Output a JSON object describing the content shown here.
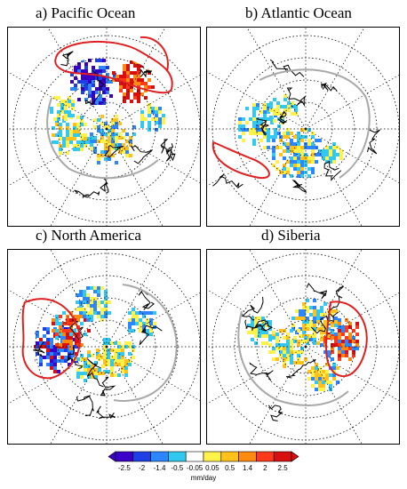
{
  "panels": [
    {
      "id": "a",
      "title": "a) Pacific Ocean",
      "region_outline": "Pacific Ocean source region"
    },
    {
      "id": "b",
      "title": "b) Atlantic Ocean",
      "region_outline": "Atlantic Ocean source region"
    },
    {
      "id": "c",
      "title": "c) North America",
      "region_outline": "North America source region"
    },
    {
      "id": "d",
      "title": "d) Siberia",
      "region_outline": "Siberia source region"
    }
  ],
  "colorbar": {
    "labels": [
      "-2.5",
      "-2",
      "-1.4",
      "-0.5",
      "-0.05",
      "0.05",
      "0.5",
      "1.4",
      "2",
      "2.5"
    ],
    "unit": "mm/day",
    "colors": [
      "#3a00c8",
      "#1f3fe6",
      "#2b86ff",
      "#33c8f0",
      "#ffffff",
      "#fff24a",
      "#ffc21a",
      "#ff8a10",
      "#ff3a1a",
      "#d80f0f"
    ]
  },
  "colors": {
    "outline_red": "#e02020",
    "outline_gray": "#a8a8a8",
    "frame": "#000000"
  }
}
